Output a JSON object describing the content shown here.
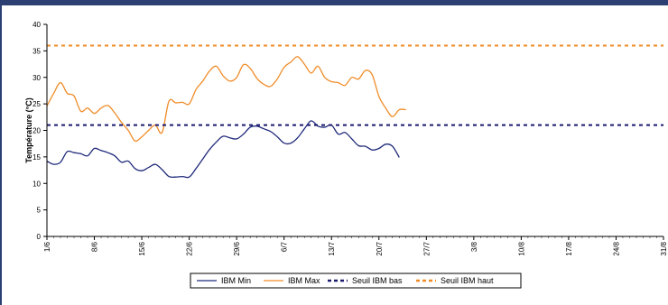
{
  "chart_data": {
    "type": "line",
    "title": "",
    "xlabel": "",
    "ylabel": "Température (°C)",
    "ylim": [
      0,
      40
    ],
    "yticks": [
      0,
      5,
      10,
      15,
      20,
      25,
      30,
      35,
      40
    ],
    "xlim": [
      "2009-06-01",
      "2009-08-31"
    ],
    "xtick_labels": [
      "1/6",
      "8/6",
      "15/6",
      "22/6",
      "29/6",
      "6/7",
      "13/7",
      "20/7",
      "27/7",
      "3/8",
      "10/8",
      "17/8",
      "24/8",
      "31/8"
    ],
    "grid": false,
    "legend_position": "bottom",
    "series": [
      {
        "name": "IBM Min",
        "color": "#1f2a7a",
        "style": "solid",
        "x": [
          "2009-06-01",
          "2009-06-02",
          "2009-06-03",
          "2009-06-04",
          "2009-06-05",
          "2009-06-06",
          "2009-06-07",
          "2009-06-08",
          "2009-06-09",
          "2009-06-10",
          "2009-06-11",
          "2009-06-12",
          "2009-06-13",
          "2009-06-14",
          "2009-06-15",
          "2009-06-16",
          "2009-06-17",
          "2009-06-18",
          "2009-06-19",
          "2009-06-20",
          "2009-06-21",
          "2009-06-22",
          "2009-06-23",
          "2009-06-24",
          "2009-06-25",
          "2009-06-26",
          "2009-06-27",
          "2009-06-28",
          "2009-06-29",
          "2009-06-30",
          "2009-07-01",
          "2009-07-02",
          "2009-07-03",
          "2009-07-04",
          "2009-07-05",
          "2009-07-06",
          "2009-07-07",
          "2009-07-08",
          "2009-07-09",
          "2009-07-10",
          "2009-07-11",
          "2009-07-12",
          "2009-07-13",
          "2009-07-14",
          "2009-07-15",
          "2009-07-16",
          "2009-07-17",
          "2009-07-18",
          "2009-07-19",
          "2009-07-20",
          "2009-07-21",
          "2009-07-22",
          "2009-07-23"
        ],
        "y": [
          14.2,
          13.6,
          14.0,
          16.0,
          15.8,
          15.6,
          15.2,
          16.6,
          16.2,
          15.8,
          15.2,
          14.0,
          14.2,
          12.8,
          12.4,
          13.0,
          13.6,
          12.6,
          11.3,
          11.2,
          11.3,
          11.2,
          12.8,
          14.6,
          16.4,
          17.8,
          18.9,
          18.6,
          18.4,
          19.3,
          20.6,
          20.8,
          20.3,
          19.8,
          18.8,
          17.6,
          17.6,
          18.6,
          20.3,
          21.8,
          20.8,
          20.6,
          21.0,
          19.3,
          19.6,
          18.4,
          17.1,
          17.0,
          16.3,
          16.6,
          17.4,
          17.0,
          14.9
        ]
      },
      {
        "name": "IBM Max",
        "color": "#f08c28",
        "style": "solid",
        "x": [
          "2009-06-01",
          "2009-06-02",
          "2009-06-03",
          "2009-06-04",
          "2009-06-05",
          "2009-06-06",
          "2009-06-07",
          "2009-06-08",
          "2009-06-09",
          "2009-06-10",
          "2009-06-11",
          "2009-06-12",
          "2009-06-13",
          "2009-06-14",
          "2009-06-15",
          "2009-06-16",
          "2009-06-17",
          "2009-06-18",
          "2009-06-19",
          "2009-06-20",
          "2009-06-21",
          "2009-06-22",
          "2009-06-23",
          "2009-06-24",
          "2009-06-25",
          "2009-06-26",
          "2009-06-27",
          "2009-06-28",
          "2009-06-29",
          "2009-06-30",
          "2009-07-01",
          "2009-07-02",
          "2009-07-03",
          "2009-07-04",
          "2009-07-05",
          "2009-07-06",
          "2009-07-07",
          "2009-07-08",
          "2009-07-09",
          "2009-07-10",
          "2009-07-11",
          "2009-07-12",
          "2009-07-13",
          "2009-07-14",
          "2009-07-15",
          "2009-07-16",
          "2009-07-17",
          "2009-07-18",
          "2009-07-19",
          "2009-07-20",
          "2009-07-21",
          "2009-07-22",
          "2009-07-23",
          "2009-07-24"
        ],
        "y": [
          24.6,
          27.0,
          29.0,
          27.0,
          26.5,
          23.6,
          24.2,
          23.2,
          24.2,
          24.7,
          23.3,
          21.5,
          20.0,
          18.0,
          18.8,
          20.0,
          21.0,
          19.6,
          25.5,
          25.2,
          25.3,
          25.0,
          27.7,
          29.3,
          31.2,
          32.1,
          30.3,
          29.3,
          30.0,
          32.4,
          31.7,
          29.8,
          28.7,
          28.3,
          29.7,
          31.9,
          32.9,
          33.9,
          32.5,
          30.8,
          32.1,
          30.0,
          29.2,
          29.0,
          28.5,
          30.0,
          29.7,
          31.3,
          30.5,
          26.4,
          24.2,
          22.6,
          23.9,
          23.9
        ]
      },
      {
        "name": "Seuil IBM bas",
        "color": "#1a1a6e",
        "style": "dashed",
        "x": [
          "2009-06-01",
          "2009-08-31"
        ],
        "y": [
          21,
          21
        ]
      },
      {
        "name": "Seuil IBM haut",
        "color": "#f08c28",
        "style": "dashed",
        "x": [
          "2009-06-01",
          "2009-08-31"
        ],
        "y": [
          36,
          36
        ]
      }
    ]
  }
}
